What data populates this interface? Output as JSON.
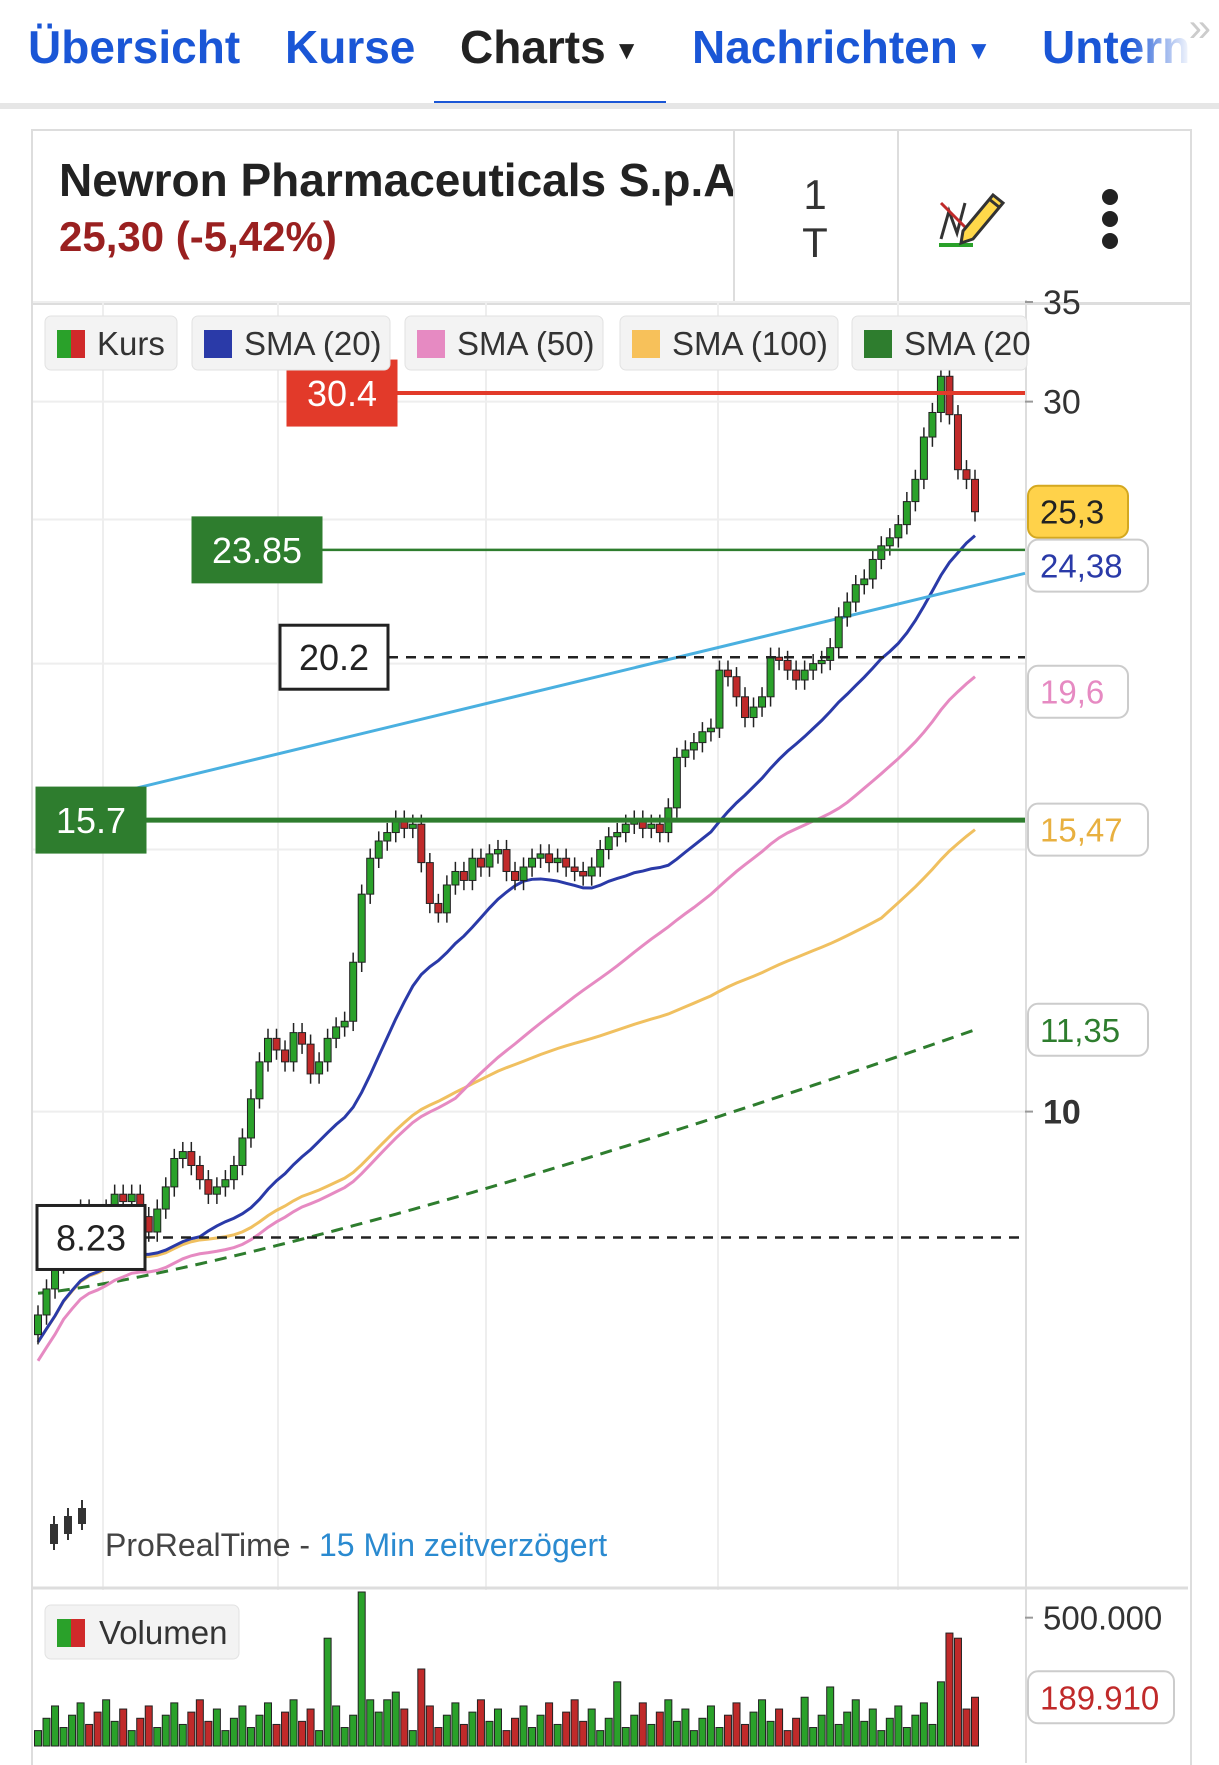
{
  "nav": {
    "tabs": [
      {
        "label": "Übersicht"
      },
      {
        "label": "Kurse"
      },
      {
        "label": "Charts",
        "active": true
      },
      {
        "label": "Nachrichten"
      },
      {
        "label": "Unterne"
      }
    ],
    "more_icon": "double-chevron-right-icon"
  },
  "header": {
    "title": "Newron Pharmaceuticals S.p.A.",
    "price": "25,30 (-5,42%)",
    "timeframe_line1": "1",
    "timeframe_line2": "T",
    "draw_icon": "pencil-chart-icon",
    "menu_icon": "more-vertical-icon"
  },
  "colors": {
    "brand": "#1a56d6",
    "price_down": "#9a2020",
    "candle_up": "#2aa12a",
    "candle_down": "#c02a2a",
    "sma20": "#2a3aa8",
    "sma50": "#e68ac2",
    "sma100": "#f0c060",
    "sma200": "#2e7d2e",
    "trend": "#4ab0e0"
  },
  "legend": [
    {
      "label": "Kurs",
      "swatch": "kurs"
    },
    {
      "label": "SMA (20)",
      "swatch": "#2a3aa8"
    },
    {
      "label": "SMA (50)",
      "swatch": "#e68ac2"
    },
    {
      "label": "SMA (100)",
      "swatch": "#f7c15a"
    },
    {
      "label": "SMA (20",
      "swatch": "#2e7d2e"
    }
  ],
  "y_axis": {
    "ticks": [
      "35",
      "30",
      "10"
    ],
    "badges": [
      {
        "label": "25,3",
        "style": "current"
      },
      {
        "label": "24,38",
        "color": "#2a3aa8"
      },
      {
        "label": "19,6",
        "color": "#e68ac2"
      },
      {
        "label": "15,47",
        "color": "#e8b040"
      },
      {
        "label": "11,35",
        "color": "#2e7d2e"
      }
    ]
  },
  "levels": [
    {
      "label": "30.4",
      "value": 30.4,
      "style": "red"
    },
    {
      "label": "23.85",
      "value": 23.85,
      "style": "green"
    },
    {
      "label": "20.2",
      "value": 20.2,
      "style": "dashed"
    },
    {
      "label": "15.7",
      "value": 15.7,
      "style": "green"
    },
    {
      "label": "8.23",
      "value": 8.23,
      "style": "dashed"
    }
  ],
  "footer": {
    "brand": "ProRealTime",
    "sep": " - ",
    "delay": "15 Min zeitverzögert",
    "icon": "candlestick-icon"
  },
  "volume": {
    "legend_label": "Volumen",
    "ticks": [
      "500.000"
    ],
    "badge": "189.910"
  },
  "chart_data": {
    "type": "candlestick",
    "y_scale": "log",
    "y_range": [
      6.4,
      35
    ],
    "current_price": 25.3,
    "closes": [
      7.3,
      7.6,
      7.9,
      8.3,
      8.4,
      8.6,
      8.5,
      8.4,
      8.6,
      8.8,
      8.7,
      8.8,
      8.5,
      8.3,
      8.6,
      8.9,
      9.3,
      9.4,
      9.2,
      9.0,
      8.8,
      8.9,
      9.0,
      9.2,
      9.6,
      10.2,
      10.8,
      11.2,
      11.0,
      10.8,
      11.3,
      11.1,
      10.6,
      10.8,
      11.2,
      11.4,
      11.5,
      12.6,
      14.0,
      14.8,
      15.2,
      15.4,
      15.7,
      15.5,
      15.6,
      14.7,
      13.8,
      13.6,
      14.2,
      14.5,
      14.3,
      14.8,
      14.6,
      14.9,
      15.0,
      14.5,
      14.3,
      14.6,
      14.8,
      14.9,
      14.7,
      14.8,
      14.6,
      14.5,
      14.4,
      14.6,
      15.0,
      15.3,
      15.4,
      15.6,
      15.7,
      15.5,
      15.6,
      15.4,
      16.0,
      17.3,
      17.5,
      17.7,
      18.0,
      18.1,
      19.8,
      19.6,
      19.0,
      18.4,
      18.7,
      19.0,
      20.2,
      20.1,
      19.8,
      19.5,
      19.8,
      20.0,
      20.1,
      20.5,
      21.5,
      22.0,
      22.6,
      22.8,
      23.5,
      24.0,
      24.3,
      24.8,
      25.7,
      26.6,
      28.4,
      29.5,
      31.2,
      29.4,
      27.0,
      26.6,
      25.3
    ],
    "sma20_end": 24.38,
    "sma50_end": 19.6,
    "sma100_end": 15.47,
    "sma200_end": 11.35,
    "trendline": [
      {
        "date_index": 0,
        "value": 15.9
      },
      {
        "date_index": 112,
        "value": 23.0
      }
    ],
    "volume_max": 600000,
    "volume_last": 189910
  }
}
